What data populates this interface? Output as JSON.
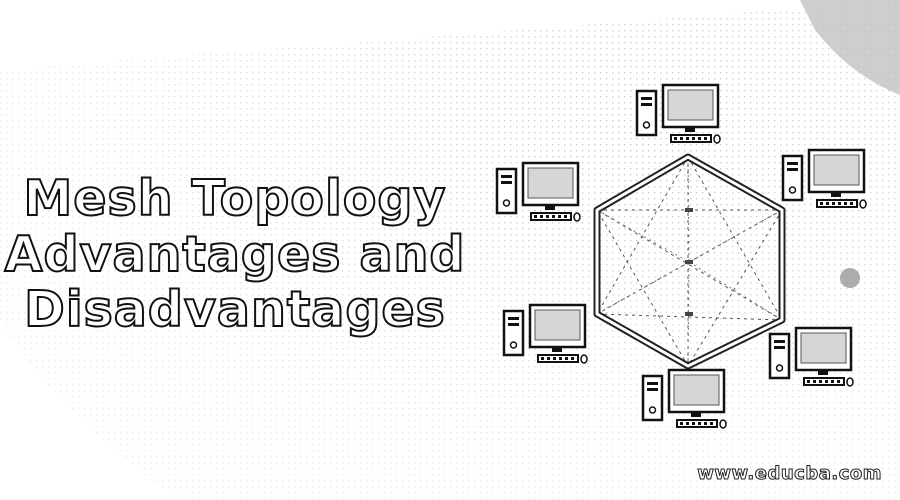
{
  "title": {
    "line1": "Mesh Topology",
    "line2": "Advantages and",
    "line3": "Disadvantages"
  },
  "watermark": "www.educba.com",
  "diagram": {
    "topology": "mesh",
    "node_count": 6,
    "node_icon": "desktop-computer-icon",
    "line_color": "#222222"
  }
}
